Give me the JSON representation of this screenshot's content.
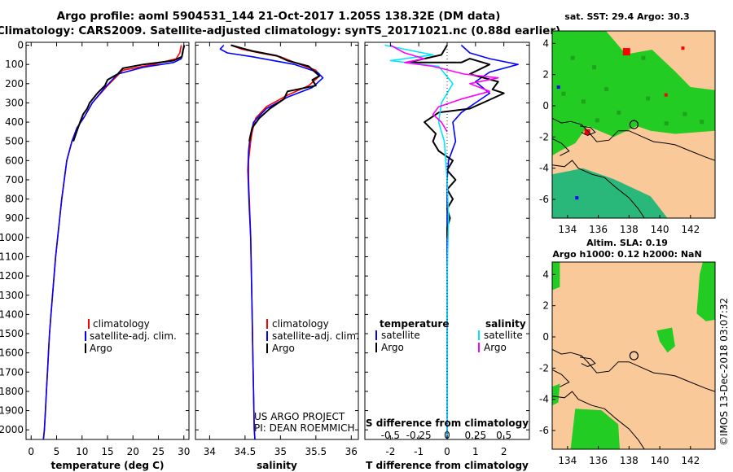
{
  "header": {
    "title_line1": "Argo profile: aoml 5904531_144 21-Oct-2017 1.205S 138.32E (DM data)",
    "title_line2": "Climatology: CARS2009. Satellite-adjusted climatology: synTS_20171021.nc (0.88d earlier)"
  },
  "colors": {
    "climatology": "#ff0000",
    "satellite": "#0000ff",
    "argo": "#000000",
    "satellite_sal": "#00e5ff",
    "argo_sal": "#ff00ff",
    "land": "#f9c99a",
    "map_green": "#22cc22"
  },
  "depth_axis": {
    "ticks": [
      0,
      100,
      200,
      300,
      400,
      500,
      600,
      700,
      800,
      900,
      1000,
      1100,
      1200,
      1300,
      1400,
      1500,
      1600,
      1700,
      1800,
      1900,
      2000
    ]
  },
  "chart_data": [
    {
      "id": "temperature",
      "type": "line",
      "xlabel": "temperature (deg C)",
      "ylabel": "depth",
      "xlim": [
        -1,
        31
      ],
      "ylim": [
        2050,
        -15
      ],
      "xticks": [
        0,
        5,
        10,
        15,
        20,
        25,
        30
      ],
      "legend": {
        "placement": "bottom-center",
        "items": [
          "climatology",
          "satellite-adj. clim.",
          "Argo"
        ]
      },
      "series": [
        {
          "name": "climatology",
          "color": "#ff0000",
          "points": [
            [
              29.5,
              0
            ],
            [
              29.2,
              40
            ],
            [
              28.5,
              70
            ],
            [
              24,
              100
            ],
            [
              18,
              130
            ],
            [
              15,
              210
            ],
            [
              12,
              300
            ],
            [
              10.5,
              370
            ],
            [
              9,
              430
            ],
            [
              8,
              500
            ],
            [
              7,
              600
            ],
            [
              6.5,
              700
            ],
            [
              6,
              800
            ],
            [
              5.6,
              900
            ],
            [
              5.2,
              1000
            ],
            [
              4.8,
              1100
            ],
            [
              4.5,
              1200
            ],
            [
              4.2,
              1300
            ],
            [
              3.9,
              1400
            ],
            [
              3.6,
              1500
            ],
            [
              3.4,
              1600
            ],
            [
              3.2,
              1700
            ],
            [
              3,
              1800
            ],
            [
              2.8,
              1900
            ],
            [
              2.6,
              2000
            ],
            [
              2.4,
              2050
            ]
          ]
        },
        {
          "name": "satellite-adj. clim.",
          "color": "#0000ff",
          "points": [
            [
              30,
              0
            ],
            [
              29.8,
              40
            ],
            [
              29.5,
              70
            ],
            [
              28,
              90
            ],
            [
              22,
              115
            ],
            [
              17,
              150
            ],
            [
              14.5,
              220
            ],
            [
              12,
              300
            ],
            [
              10.5,
              370
            ],
            [
              9,
              430
            ],
            [
              8,
              500
            ],
            [
              7,
              600
            ],
            [
              6.5,
              700
            ],
            [
              6,
              800
            ],
            [
              5.6,
              900
            ],
            [
              5.2,
              1000
            ],
            [
              4.8,
              1100
            ],
            [
              4.5,
              1200
            ],
            [
              4.2,
              1300
            ],
            [
              3.9,
              1400
            ],
            [
              3.6,
              1500
            ],
            [
              3.4,
              1600
            ],
            [
              3.2,
              1700
            ],
            [
              3,
              1800
            ],
            [
              2.8,
              1900
            ],
            [
              2.6,
              2000
            ],
            [
              2.4,
              2050
            ]
          ]
        },
        {
          "name": "Argo",
          "color": "#000000",
          "points": [
            [
              30.1,
              0
            ],
            [
              29.8,
              30
            ],
            [
              29.6,
              60
            ],
            [
              28,
              80
            ],
            [
              22,
              100
            ],
            [
              18,
              120
            ],
            [
              17,
              150
            ],
            [
              15,
              180
            ],
            [
              14.5,
              210
            ],
            [
              13,
              250
            ],
            [
              11.5,
              300
            ],
            [
              11,
              330
            ],
            [
              10.2,
              360
            ],
            [
              9.6,
              400
            ],
            [
              9.2,
              430
            ],
            [
              8.8,
              460
            ],
            [
              8.3,
              500
            ]
          ]
        }
      ]
    },
    {
      "id": "salinity",
      "type": "line",
      "xlabel": "salinity",
      "ylabel": "depth",
      "xlim": [
        33.8,
        36.1
      ],
      "ylim": [
        2050,
        -15
      ],
      "xticks": [
        34,
        34.5,
        35,
        35.5,
        36
      ],
      "legend": {
        "placement": "bottom-center",
        "items": [
          "climatology",
          "satellite-adj. clim.",
          "Argo"
        ]
      },
      "series": [
        {
          "name": "climatology",
          "color": "#ff0000",
          "points": [
            [
              34.3,
              0
            ],
            [
              34.45,
              20
            ],
            [
              34.7,
              40
            ],
            [
              35,
              60
            ],
            [
              35.2,
              90
            ],
            [
              35.5,
              130
            ],
            [
              35.55,
              160
            ],
            [
              35.4,
              210
            ],
            [
              35.1,
              260
            ],
            [
              34.8,
              320
            ],
            [
              34.65,
              380
            ],
            [
              34.6,
              450
            ],
            [
              34.58,
              500
            ],
            [
              34.55,
              600
            ],
            [
              34.55,
              700
            ],
            [
              34.56,
              800
            ],
            [
              34.57,
              900
            ],
            [
              34.58,
              1000
            ],
            [
              34.59,
              1200
            ],
            [
              34.6,
              1400
            ],
            [
              34.61,
              1600
            ],
            [
              34.62,
              1800
            ],
            [
              34.63,
              2000
            ],
            [
              34.64,
              2050
            ]
          ]
        },
        {
          "name": "satellite-adj. clim.",
          "color": "#0000ff",
          "points": [
            [
              34.2,
              0
            ],
            [
              34.15,
              20
            ],
            [
              34.25,
              40
            ],
            [
              34.6,
              60
            ],
            [
              35.2,
              100
            ],
            [
              35.52,
              140
            ],
            [
              35.6,
              170
            ],
            [
              35.45,
              220
            ],
            [
              35.1,
              270
            ],
            [
              34.8,
              330
            ],
            [
              34.62,
              400
            ],
            [
              34.57,
              480
            ],
            [
              34.55,
              550
            ],
            [
              34.54,
              650
            ],
            [
              34.55,
              750
            ],
            [
              34.56,
              850
            ],
            [
              34.58,
              1000
            ],
            [
              34.59,
              1200
            ],
            [
              34.6,
              1400
            ],
            [
              34.61,
              1600
            ],
            [
              34.62,
              1800
            ],
            [
              34.63,
              2000
            ],
            [
              34.64,
              2050
            ]
          ]
        },
        {
          "name": "Argo",
          "color": "#000000",
          "points": [
            [
              34.3,
              0
            ],
            [
              34.45,
              15
            ],
            [
              34.6,
              30
            ],
            [
              34.95,
              55
            ],
            [
              35.1,
              80
            ],
            [
              35.4,
              110
            ],
            [
              35.55,
              160
            ],
            [
              35.45,
              180
            ],
            [
              35.5,
              210
            ],
            [
              35.1,
              240
            ],
            [
              35.05,
              280
            ],
            [
              34.85,
              330
            ],
            [
              34.7,
              380
            ],
            [
              34.6,
              430
            ],
            [
              34.57,
              480
            ],
            [
              34.56,
              500
            ]
          ]
        }
      ]
    },
    {
      "id": "difference",
      "type": "line",
      "xlabel": "T difference from climatology",
      "title_inside": "S difference from climatology",
      "ylabel": "depth",
      "xlim": [
        -2.9,
        2.9
      ],
      "ylim": [
        2050,
        -15
      ],
      "xticks": [
        -2,
        -1,
        0,
        1,
        2
      ],
      "xticklabels": [
        "-2",
        "-1",
        "0",
        "1",
        "2"
      ],
      "top_ticks": [
        -0.5,
        -0.25,
        0,
        0.25,
        0.5
      ],
      "top_ticklabels": [
        "-0.5",
        "-0.25",
        "0",
        "0.25",
        "0.5"
      ],
      "top_scale": 4,
      "legend": {
        "placement": "bottom-center",
        "temp_heading": "temperature",
        "sal_heading": "salinity",
        "temp_items": [
          "satellite",
          "Argo"
        ],
        "sal_items": [
          "satellite",
          "Argo"
        ]
      },
      "series": [
        {
          "name": "T satellite",
          "color": "#0000ff",
          "points": [
            [
              0.5,
              0
            ],
            [
              0.8,
              40
            ],
            [
              1.5,
              70
            ],
            [
              2.5,
              100
            ],
            [
              1.5,
              140
            ],
            [
              1,
              190
            ],
            [
              1.5,
              250
            ],
            [
              1,
              300
            ],
            [
              0.5,
              350
            ],
            [
              0.2,
              400
            ],
            [
              0.3,
              500
            ],
            [
              0.05,
              600
            ],
            [
              0,
              700
            ],
            [
              0,
              2050
            ]
          ]
        },
        {
          "name": "T Argo",
          "color": "#000000",
          "points": [
            [
              0,
              0
            ],
            [
              -0.2,
              50
            ],
            [
              -1.4,
              90
            ],
            [
              0.5,
              90
            ],
            [
              0.8,
              70
            ],
            [
              1.5,
              100
            ],
            [
              0.8,
              150
            ],
            [
              1.8,
              190
            ],
            [
              1.6,
              230
            ],
            [
              2,
              250
            ],
            [
              1.7,
              270
            ],
            [
              1.4,
              290
            ],
            [
              0.8,
              330
            ],
            [
              -0.3,
              350
            ],
            [
              -0.8,
              400
            ],
            [
              -0.6,
              430
            ],
            [
              -0.4,
              460
            ],
            [
              -0.5,
              500
            ],
            [
              -0.3,
              550
            ],
            [
              0.2,
              600
            ],
            [
              0,
              650
            ],
            [
              0.3,
              700
            ],
            [
              0,
              750
            ],
            [
              0.2,
              800
            ],
            [
              0,
              850
            ],
            [
              0.1,
              900
            ],
            [
              0,
              950
            ],
            [
              0,
              1000
            ]
          ]
        },
        {
          "name": "S satellite",
          "color": "#00e5ff",
          "points": [
            [
              -2.2,
              0
            ],
            [
              -1.2,
              30
            ],
            [
              -0.5,
              50
            ],
            [
              -2,
              80
            ],
            [
              -0.3,
              110
            ],
            [
              0.2,
              200
            ],
            [
              -0.2,
              300
            ],
            [
              -0.3,
              400
            ],
            [
              -0.1,
              500
            ],
            [
              -0.05,
              600
            ],
            [
              0,
              700
            ],
            [
              0.05,
              900
            ],
            [
              0,
              1200
            ],
            [
              0,
              2050
            ]
          ]
        },
        {
          "name": "S Argo",
          "color": "#ff00ff",
          "points": [
            [
              -2,
              0
            ],
            [
              -1.5,
              40
            ],
            [
              -0.8,
              70
            ],
            [
              -1.5,
              90
            ],
            [
              -0.5,
              110
            ],
            [
              0.6,
              150
            ],
            [
              1.8,
              170
            ],
            [
              0.8,
              200
            ],
            [
              1.5,
              240
            ],
            [
              0.5,
              280
            ],
            [
              -0.3,
              320
            ],
            [
              -0.5,
              360
            ],
            [
              -0.2,
              400
            ],
            [
              0,
              450
            ]
          ]
        }
      ]
    }
  ],
  "credits": {
    "line1": "US ARGO PROJECT",
    "line2": "PI: DEAN ROEMMICH"
  },
  "map_top": {
    "title": "sat. SST: 29.4 Argo: 30.3",
    "xticks": [
      134,
      136,
      138,
      140,
      142
    ],
    "yticks": [
      4,
      2,
      0,
      -2,
      -4,
      -6
    ],
    "xlim": [
      133,
      143.6
    ],
    "ylim": [
      -7.2,
      4.8
    ],
    "argo_position": [
      138.32,
      -1.205
    ]
  },
  "map_bottom": {
    "title_line1": "Altim. SLA: 0.19",
    "title_line2": "Argo h1000: 0.12 h2000: NaN",
    "xticks": [
      134,
      136,
      138,
      140,
      142
    ],
    "yticks": [
      4,
      2,
      0,
      -2,
      -4,
      -6
    ],
    "xlim": [
      133,
      143.6
    ],
    "ylim": [
      -7.2,
      4.8
    ],
    "argo_position": [
      138.32,
      -1.205
    ]
  },
  "timestamp": "©IMOS 13-Dec-2018 03:07:32"
}
